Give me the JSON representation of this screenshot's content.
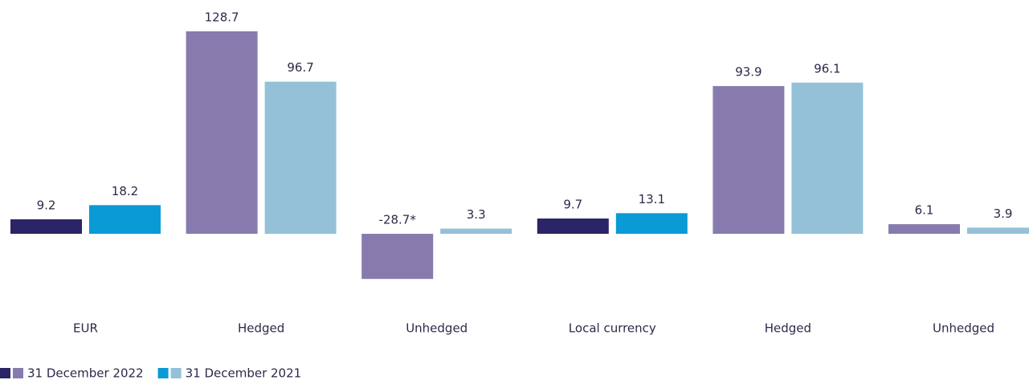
{
  "chart_data": {
    "type": "bar",
    "categories": [
      "EUR",
      "Hedged",
      "Unhedged",
      "Local currency",
      "Hedged",
      "Unhedged"
    ],
    "series": [
      {
        "name": "31 December 2022",
        "colors": [
          "#2b2466",
          "#877bae",
          "#877bae",
          "#2b2466",
          "#877bae",
          "#877bae"
        ],
        "values": [
          9.2,
          128.7,
          -28.7,
          9.7,
          93.9,
          6.1
        ],
        "value_labels": [
          "9.2",
          "128.7",
          "-28.7*",
          "9.7",
          "93.9",
          "6.1"
        ]
      },
      {
        "name": "31 December 2021",
        "colors": [
          "#0a9ad6",
          "#94c1d8",
          "#94c1d8",
          "#0a9ad6",
          "#94c1d8",
          "#94c1d8"
        ],
        "values": [
          18.2,
          96.7,
          3.3,
          13.1,
          96.1,
          3.9
        ]
      }
    ]
  }
}
